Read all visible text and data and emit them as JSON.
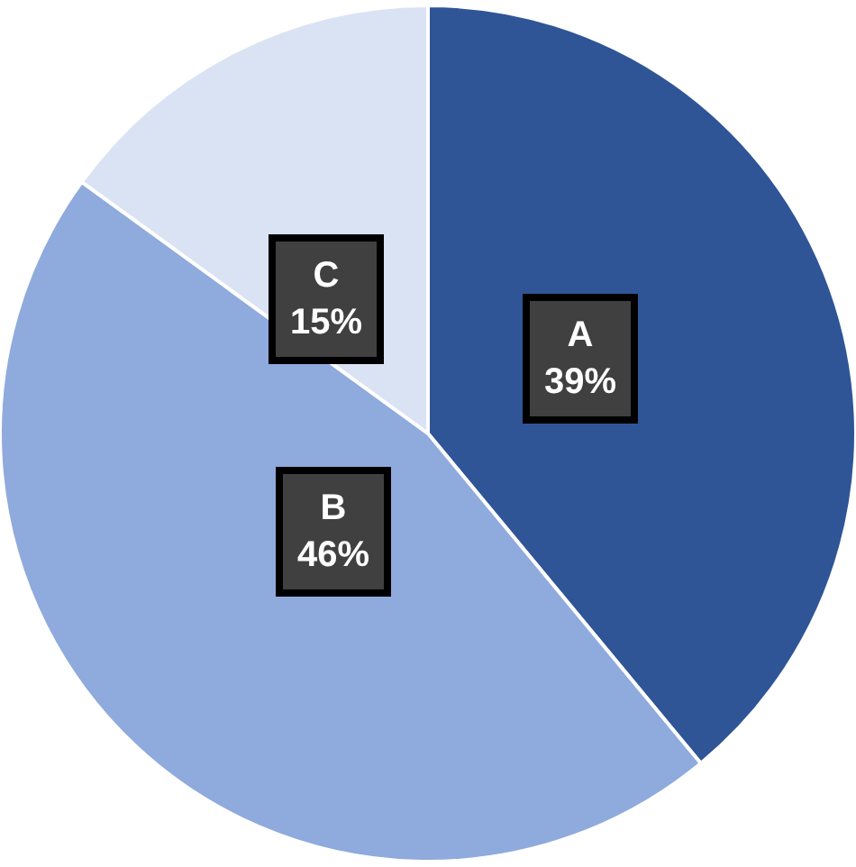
{
  "chart_data": {
    "type": "pie",
    "categories": [
      "A",
      "B",
      "C"
    ],
    "values": [
      39,
      46,
      15
    ],
    "colors": [
      "#2f5597",
      "#8faadc",
      "#dae3f3"
    ],
    "value_labels": [
      "39%",
      "46%",
      "15%"
    ],
    "legend": false
  }
}
